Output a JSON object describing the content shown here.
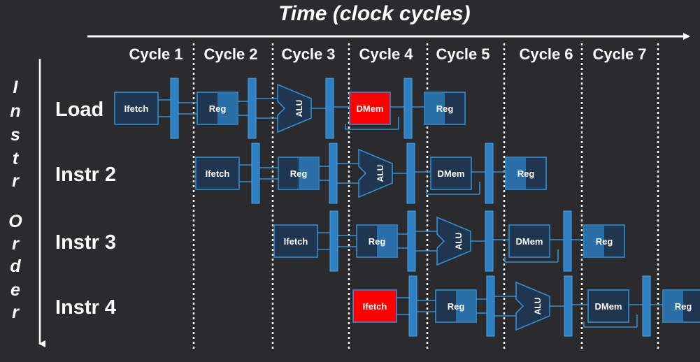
{
  "time_label": "Time (clock cycles)",
  "order_label": "Instr Order",
  "cycles": [
    "Cycle 1",
    "Cycle 2",
    "Cycle 3",
    "Cycle 4",
    "Cycle 5",
    "Cycle 6",
    "Cycle 7"
  ],
  "stage_names": {
    "ifetch": "Ifetch",
    "reg": "Reg",
    "alu": "ALU",
    "dmem": "DMem"
  },
  "instructions": [
    {
      "label": "Load",
      "highlight": "dmem"
    },
    {
      "label": "Instr 2",
      "highlight": ""
    },
    {
      "label": "Instr 3",
      "highlight": ""
    },
    {
      "label": "Instr 4",
      "highlight": "ifetch"
    }
  ],
  "colors": {
    "background": "#2b2b2e",
    "stage_fill": "#1f3550",
    "stage_stroke": "#2f8fd6",
    "reg_shade": "#2a6fa8",
    "highlight": "#ff0000",
    "text": "#ffffff"
  }
}
